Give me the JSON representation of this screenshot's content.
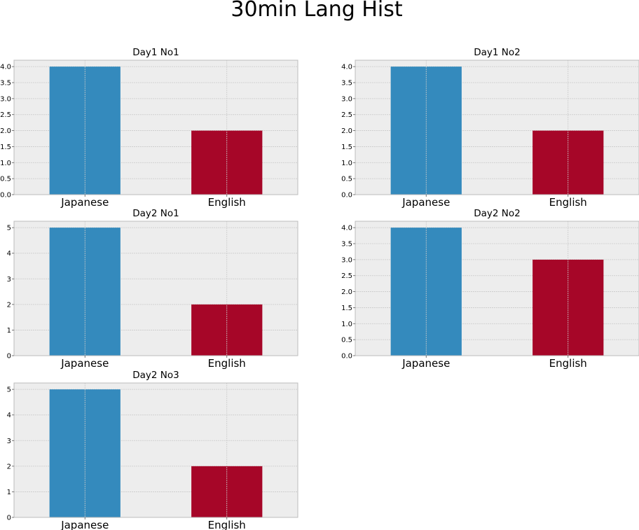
{
  "figure": {
    "title": "30min Lang Hist"
  },
  "colors": {
    "plot_bg": "#EDEDED",
    "grid": "#C9C9C9",
    "frame": "#BCBCBC",
    "japanese": "#348ABD",
    "english": "#A60628"
  },
  "chart_data": [
    {
      "type": "bar",
      "title": "Day1 No1",
      "categories": [
        "Japanese",
        "English"
      ],
      "values": [
        4,
        2
      ],
      "ylim": [
        0,
        4.2
      ],
      "yticks": [
        "0.0",
        "0.5",
        "1.0",
        "1.5",
        "2.0",
        "2.5",
        "3.0",
        "3.5",
        "4.0"
      ],
      "grid": true,
      "xlabel": "",
      "ylabel": ""
    },
    {
      "type": "bar",
      "title": "Day1 No2",
      "categories": [
        "Japanese",
        "English"
      ],
      "values": [
        4,
        2
      ],
      "ylim": [
        0,
        4.2
      ],
      "yticks": [
        "0.0",
        "0.5",
        "1.0",
        "1.5",
        "2.0",
        "2.5",
        "3.0",
        "3.5",
        "4.0"
      ],
      "grid": true,
      "xlabel": "",
      "ylabel": ""
    },
    {
      "type": "bar",
      "title": "Day2 No1",
      "categories": [
        "Japanese",
        "English"
      ],
      "values": [
        5,
        2
      ],
      "ylim": [
        0,
        5.25
      ],
      "yticks": [
        "0",
        "1",
        "2",
        "3",
        "4",
        "5"
      ],
      "grid": true,
      "xlabel": "",
      "ylabel": ""
    },
    {
      "type": "bar",
      "title": "Day2 No2",
      "categories": [
        "Japanese",
        "English"
      ],
      "values": [
        4,
        3
      ],
      "ylim": [
        0,
        4.2
      ],
      "yticks": [
        "0.0",
        "0.5",
        "1.0",
        "1.5",
        "2.0",
        "2.5",
        "3.0",
        "3.5",
        "4.0"
      ],
      "grid": true,
      "xlabel": "",
      "ylabel": ""
    },
    {
      "type": "bar",
      "title": "Day2 No3",
      "categories": [
        "Japanese",
        "English"
      ],
      "values": [
        5,
        2
      ],
      "ylim": [
        0,
        5.25
      ],
      "yticks": [
        "0",
        "1",
        "2",
        "3",
        "4",
        "5"
      ],
      "grid": true,
      "xlabel": "",
      "ylabel": ""
    }
  ]
}
